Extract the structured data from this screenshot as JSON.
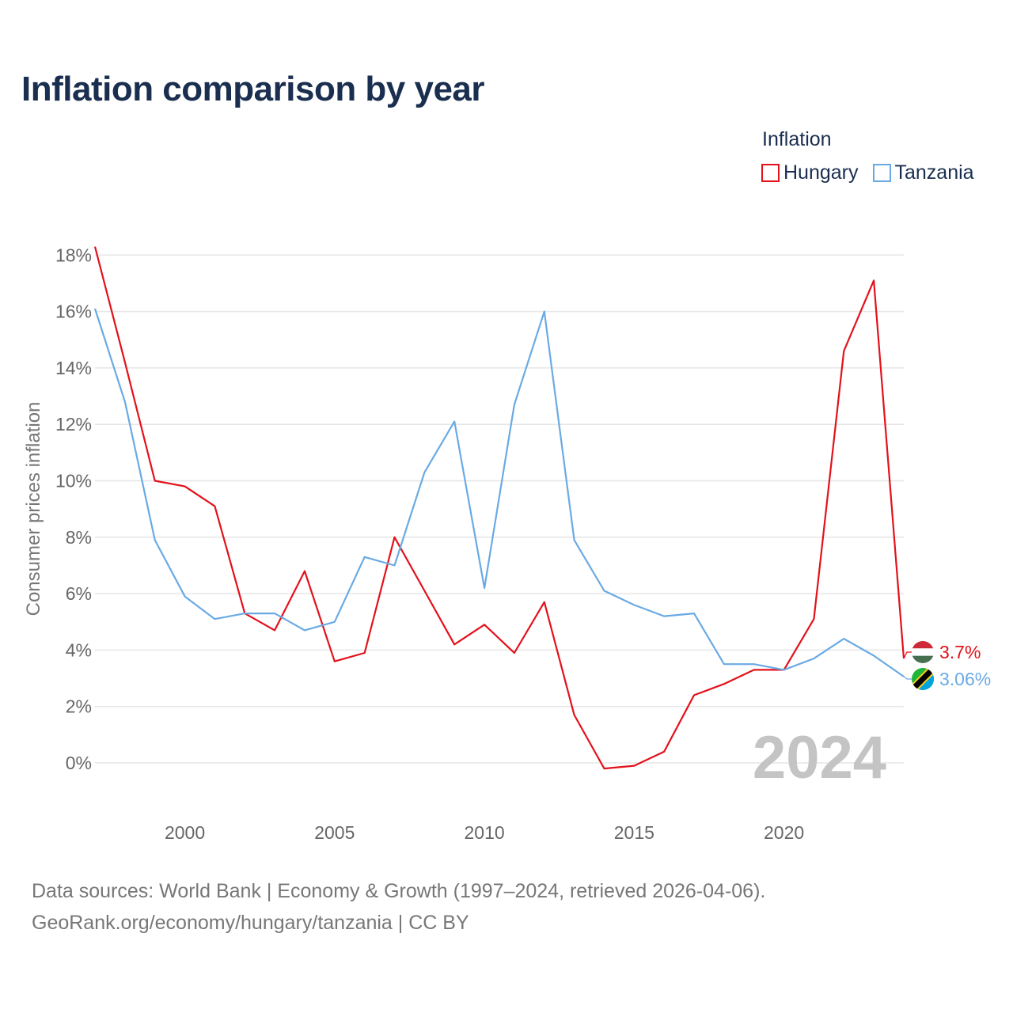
{
  "title": "Inflation comparison by year",
  "legend": {
    "title": "Inflation",
    "items": [
      {
        "label": "Hungary",
        "color": "#e3111a"
      },
      {
        "label": "Tanzania",
        "color": "#6aaae4"
      }
    ]
  },
  "source": {
    "line1": "Data sources: World Bank | Economy & Growth (1997–2024, retrieved 2026-04-06).",
    "line2": "GeoRank.org/economy/hungary/tanzania | CC BY"
  },
  "chart_data": {
    "type": "line",
    "ylabel": "Consumer prices inflation",
    "xlabel": "",
    "year_label": "2024",
    "xlim": [
      1997,
      2024
    ],
    "ylim": [
      -2,
      18
    ],
    "x_ticks": [
      2000,
      2005,
      2010,
      2015,
      2020
    ],
    "y_ticks": [
      0,
      2,
      4,
      6,
      8,
      10,
      12,
      14,
      16,
      18
    ],
    "y_tick_labels": [
      "0%",
      "2%",
      "4%",
      "6%",
      "8%",
      "10%",
      "12%",
      "14%",
      "16%",
      "18%"
    ],
    "x": [
      1997,
      1998,
      1999,
      2000,
      2001,
      2002,
      2003,
      2004,
      2005,
      2006,
      2007,
      2008,
      2009,
      2010,
      2011,
      2012,
      2013,
      2014,
      2015,
      2016,
      2017,
      2018,
      2019,
      2020,
      2021,
      2022,
      2023,
      2024
    ],
    "series": [
      {
        "name": "Hungary",
        "color": "#e3111a",
        "end_label": "3.7%",
        "flag": "hungary",
        "values": [
          18.3,
          14.2,
          10.0,
          9.8,
          9.1,
          5.3,
          4.7,
          6.8,
          3.6,
          3.9,
          8.0,
          6.1,
          4.2,
          4.9,
          3.9,
          5.7,
          1.7,
          -0.2,
          -0.1,
          0.4,
          2.4,
          2.8,
          3.3,
          3.3,
          5.1,
          14.6,
          17.1,
          3.7
        ]
      },
      {
        "name": "Tanzania",
        "color": "#6aaae4",
        "end_label": "3.06%",
        "flag": "tanzania",
        "values": [
          16.1,
          12.8,
          7.9,
          5.9,
          5.1,
          5.3,
          5.3,
          4.7,
          5.0,
          7.3,
          7.0,
          10.3,
          12.1,
          6.2,
          12.7,
          16.0,
          7.9,
          6.1,
          5.6,
          5.2,
          5.3,
          3.5,
          3.5,
          3.3,
          3.7,
          4.4,
          3.8,
          3.06
        ]
      }
    ]
  }
}
